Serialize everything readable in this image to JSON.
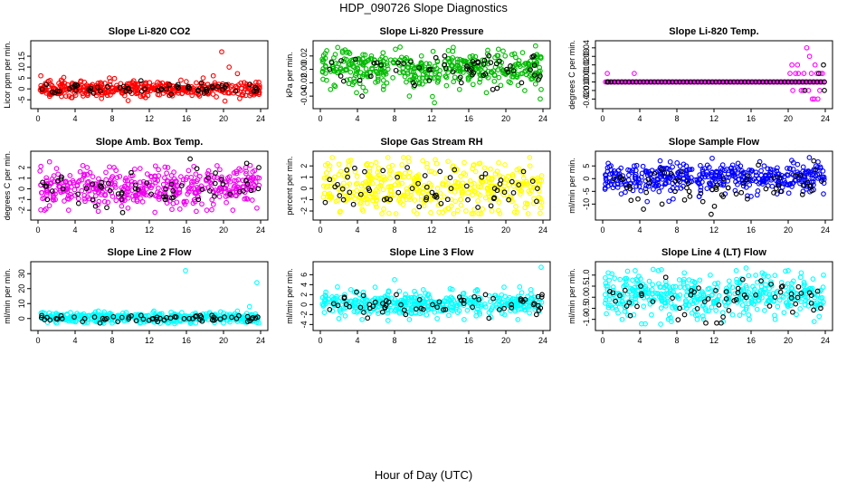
{
  "page": {
    "title": "HDP_090726  Slope Diagnostics",
    "xlabel": "Hour of Day (UTC)"
  },
  "chart_data": [
    {
      "type": "scatter",
      "title": "Slope Li-820 CO2",
      "ylabel": "Licor ppm per min.",
      "xlim": [
        0,
        24
      ],
      "ylim": [
        -7,
        20
      ],
      "xticks": [
        0,
        4,
        8,
        12,
        16,
        20,
        24
      ],
      "yticks": [
        -5,
        0,
        5,
        10,
        15
      ],
      "color": "#ff0000",
      "series": [
        {
          "name": "all",
          "center": 0,
          "spread": 1.6,
          "x": [
            0.3,
            1.2,
            2.5,
            3.6,
            5.0,
            6.3,
            7.7,
            9.1,
            10.4,
            11.6,
            12.9,
            14.2,
            15.4,
            16.6,
            17.8,
            18.9,
            19.8,
            20.6,
            21.5,
            22.4,
            23.5
          ],
          "y": [
            6,
            -2,
            4,
            -4,
            3,
            -3,
            5,
            -2,
            2,
            -4,
            3,
            -3,
            4,
            -3,
            5,
            6,
            17,
            10,
            7,
            -3,
            3
          ]
        },
        {
          "name": "outliers",
          "color": "#000000",
          "center": 0,
          "spread": 1.2,
          "x": [
            0.9,
            2.1,
            3.4,
            4.1,
            6.0,
            7.5,
            9.8,
            11.2,
            13.3,
            15.1,
            16.2,
            17.9,
            19.4,
            21.3,
            22.8,
            23.6
          ],
          "y": [
            2,
            -1,
            0,
            2,
            -2,
            1,
            0,
            -1,
            0,
            2,
            1,
            -2,
            1,
            -1,
            2,
            0
          ]
        }
      ]
    },
    {
      "type": "scatter",
      "title": "Slope Li-820 Pressure",
      "ylabel": "kPa per min.",
      "xlim": [
        0,
        24
      ],
      "ylim": [
        -0.052,
        0.036
      ],
      "xticks": [
        0,
        4,
        8,
        12,
        16,
        20,
        24
      ],
      "yticks": [
        -0.04,
        -0.02,
        0.0,
        0.02
      ],
      "ytick_labels": [
        "-0.04",
        "-0.02",
        "0.00",
        "0.02"
      ],
      "color": "#00bb00",
      "series": [
        {
          "name": "all",
          "center": 0.002,
          "spread": 0.013,
          "x": [
            1.1,
            2.4,
            3.9,
            5.5,
            6.8,
            8.1,
            9.6,
            10.9,
            12.3,
            13.8,
            15.0,
            16.4,
            17.9,
            19.2,
            20.5,
            21.8,
            23.2,
            23.8
          ],
          "y": [
            -0.03,
            0.025,
            -0.035,
            0.02,
            -0.03,
            0.03,
            -0.04,
            0.02,
            -0.05,
            0.028,
            -0.03,
            0.02,
            -0.035,
            0.03,
            -0.02,
            0.025,
            0.035,
            -0.03
          ]
        },
        {
          "name": "outliers",
          "color": "#000000",
          "center": 0.0,
          "spread": 0.012,
          "x": [
            1.0,
            2.2,
            3.8,
            4.5,
            6.1,
            8.4,
            10.0,
            11.9,
            13.4,
            15.2,
            17.0,
            18.6,
            20.1,
            21.7,
            23.0,
            23.7
          ],
          "y": [
            0.0,
            -0.01,
            0.015,
            -0.04,
            0.01,
            0.01,
            -0.02,
            0.0,
            0.02,
            -0.02,
            0.01,
            -0.03,
            0.0,
            -0.02,
            0.02,
            -0.01
          ]
        }
      ]
    },
    {
      "type": "scatter",
      "title": "Slope Li-820 Temp.",
      "ylabel": "degrees C per min.",
      "xlim": [
        0,
        24
      ],
      "ylim": [
        -0.026,
        0.043
      ],
      "xticks": [
        0,
        4,
        8,
        12,
        16,
        20,
        24
      ],
      "yticks": [
        -0.02,
        -0.01,
        0.0,
        0.01,
        0.02,
        0.03,
        0.04
      ],
      "ytick_labels": [
        "-0.02",
        "-0.01",
        "0.00",
        "0.01",
        "0.02",
        "0.03",
        "0.04"
      ],
      "color": "#ff00ff",
      "series": [
        {
          "name": "baseline",
          "center": 0.0,
          "spread": 0.0,
          "x": [],
          "y": []
        },
        {
          "name": "all",
          "center": 0.0,
          "spread": 0.0,
          "x": [
            0.5,
            3.4,
            20.2,
            20.5,
            20.8,
            21.1,
            21.4,
            21.7,
            22.0,
            22.2,
            22.5,
            22.8,
            23.1,
            23.4,
            23.7,
            20.4,
            21.0,
            21.6,
            22.3,
            22.9,
            23.5,
            22.6,
            23.2
          ],
          "y": [
            0.01,
            0.01,
            0.01,
            -0.01,
            0.01,
            0.01,
            -0.01,
            0.01,
            0.04,
            -0.01,
            0.01,
            -0.02,
            0.01,
            -0.01,
            0.01,
            0.02,
            0.02,
            -0.01,
            0.03,
            0.02,
            0.01,
            -0.02,
            -0.02
          ]
        },
        {
          "name": "outliers",
          "color": "#000000",
          "center": 0.0,
          "spread": 0.0,
          "x": [
            0.6,
            21.8,
            23.3,
            23.8,
            23.9
          ],
          "y": [
            0.0,
            -0.01,
            0.01,
            0.02,
            -0.01
          ]
        }
      ]
    },
    {
      "type": "scatter",
      "title": "Slope Amb. Box Temp.",
      "ylabel": "degrees C per min.",
      "xlim": [
        0,
        24
      ],
      "ylim": [
        -2.5,
        3.1
      ],
      "xticks": [
        0,
        4,
        8,
        12,
        16,
        20,
        24
      ],
      "yticks": [
        -2,
        -1,
        0,
        1,
        2
      ],
      "color": "#ee00ee",
      "series": [
        {
          "name": "all",
          "center": 0.2,
          "spread": 0.9,
          "x": [
            0.7,
            2.0,
            3.3,
            5.3,
            6.5,
            8.2,
            9.7,
            11.0,
            12.6,
            14.0,
            15.3,
            16.8,
            18.2,
            19.6,
            21.0,
            22.4,
            23.6
          ],
          "y": [
            -2,
            1.9,
            -2,
            2,
            -2.1,
            2,
            -1.8,
            1.9,
            -2.2,
            2,
            -1.9,
            2.1,
            -2,
            1.8,
            -2,
            2,
            -1.8
          ]
        },
        {
          "name": "outliers",
          "color": "#000000",
          "center": 0.0,
          "spread": 0.8,
          "x": [
            1.0,
            2.7,
            4.3,
            5.9,
            7.6,
            9.0,
            10.5,
            12.2,
            13.7,
            15.5,
            16.4,
            17.3,
            19.1,
            20.7,
            22.5,
            23.8
          ],
          "y": [
            -1,
            0,
            -0.5,
            -1,
            0.5,
            -1,
            0,
            -0.5,
            -1,
            0.3,
            2.8,
            -1,
            0.5,
            -0.5,
            2.4,
            2
          ]
        }
      ]
    },
    {
      "type": "scatter",
      "title": "Slope Gas Stream RH",
      "ylabel": "percent per min.",
      "xlim": [
        0,
        24
      ],
      "ylim": [
        -2.4,
        2.9
      ],
      "xticks": [
        0,
        4,
        8,
        12,
        16,
        20,
        24
      ],
      "yticks": [
        -2,
        -1,
        0,
        1,
        2
      ],
      "color": "#ffff00",
      "series": [
        {
          "name": "all",
          "center": 0.1,
          "spread": 1.05,
          "x": [
            0.8,
            2.1,
            3.3,
            4.6,
            6.0,
            7.4,
            8.8,
            10.1,
            11.5,
            12.8,
            14.3,
            15.7,
            17.1,
            18.5,
            19.9,
            21.2,
            22.6,
            23.7
          ],
          "y": [
            2.2,
            -2.1,
            2.5,
            -2,
            2.3,
            -2.2,
            2.1,
            -2,
            2.2,
            -2.1,
            2,
            -2,
            2.2,
            -2,
            2.1,
            -2.1,
            2,
            -2.2
          ]
        },
        {
          "name": "outliers",
          "color": "#000000",
          "center": 0.0,
          "spread": 0.9,
          "x": [
            1.0,
            2.5,
            3.7,
            5.2,
            6.9,
            8.3,
            9.9,
            11.4,
            12.9,
            14.1,
            15.9,
            17.4,
            18.8,
            20.3,
            21.9,
            23.4
          ],
          "y": [
            0.8,
            -1,
            1.8,
            0,
            -1,
            1,
            0,
            -1,
            1.5,
            0,
            -1,
            1,
            0,
            -1,
            1.5,
            0
          ]
        }
      ]
    },
    {
      "type": "scatter",
      "title": "Slope Sample Flow",
      "ylabel": "ml/min per min.",
      "xlim": [
        0,
        24
      ],
      "ylim": [
        -14.5,
        9
      ],
      "xticks": [
        0,
        4,
        8,
        12,
        16,
        20,
        24
      ],
      "yticks": [
        -10,
        -5,
        0,
        5
      ],
      "color": "#0000ff",
      "series": [
        {
          "name": "all",
          "center": 0.5,
          "spread": 2.6,
          "x": [
            0.6,
            2.0,
            3.4,
            4.8,
            6.2,
            7.6,
            9.0,
            10.4,
            11.8,
            13.2,
            14.6,
            16.0,
            17.4,
            18.8,
            20.2,
            21.6,
            23.0,
            23.8
          ],
          "y": [
            6,
            -6,
            5,
            -9,
            7,
            -8,
            5,
            -7,
            8,
            -6,
            6,
            -7,
            5,
            -6,
            4,
            -5,
            5,
            -6
          ]
        },
        {
          "name": "outliers",
          "color": "#000000",
          "center": -2.0,
          "spread": 4.0,
          "x": [
            1.2,
            2.9,
            3.8,
            4.4,
            5.6,
            6.4,
            7.8,
            9.4,
            10.8,
            11.7,
            13.0,
            14.4,
            15.6,
            17.6,
            19.2,
            20.8,
            22.4,
            23.6
          ],
          "y": [
            0,
            -3,
            -8,
            -12,
            2,
            -10,
            -5,
            -7,
            -9,
            -14,
            0,
            -6,
            -8,
            -4,
            -5,
            1,
            -3,
            -1
          ]
        }
      ]
    },
    {
      "type": "scatter",
      "title": "Slope Line 2 Flow",
      "ylabel": "ml/min per min.",
      "xlim": [
        0,
        24
      ],
      "ylim": [
        -5,
        35
      ],
      "xticks": [
        0,
        4,
        8,
        12,
        16,
        20,
        24
      ],
      "yticks": [
        0,
        10,
        20,
        30
      ],
      "color": "#00ffff",
      "series": [
        {
          "name": "all",
          "center": 0.5,
          "spread": 1.6,
          "x": [
            0.5,
            2.0,
            3.5,
            5.0,
            6.5,
            8.0,
            9.5,
            11.0,
            12.5,
            14.0,
            15.5,
            15.9,
            17.0,
            18.5,
            20.0,
            21.5,
            22.8,
            23.6,
            23.8
          ],
          "y": [
            4,
            -3,
            4,
            -3,
            5,
            -3,
            4,
            -3,
            5,
            -3,
            4,
            32,
            -3,
            4,
            -3,
            5,
            8,
            24,
            -3
          ]
        },
        {
          "name": "outliers",
          "color": "#000000",
          "center": 0.0,
          "spread": 1.2,
          "x": [
            0.4,
            1.3,
            2.6,
            3.9,
            4.8,
            6.1,
            7.4,
            8.6,
            9.8,
            11.1,
            12.4,
            13.6,
            14.9,
            16.3,
            17.5,
            18.8,
            20.1,
            21.4,
            22.6,
            23.7
          ],
          "y": [
            2,
            -1,
            0,
            1,
            -2,
            1,
            0,
            -2,
            1,
            2,
            0,
            -1,
            1,
            0,
            2,
            -1,
            1,
            0,
            -2,
            1
          ]
        }
      ]
    },
    {
      "type": "scatter",
      "title": "Slope Line 3 Flow",
      "ylabel": "ml/min per min.",
      "xlim": [
        0,
        24
      ],
      "ylim": [
        -4.3,
        7.7
      ],
      "xticks": [
        0,
        4,
        8,
        12,
        16,
        20,
        24
      ],
      "yticks": [
        -4,
        -2,
        0,
        2,
        4,
        6
      ],
      "color": "#00ffff",
      "series": [
        {
          "name": "all",
          "center": 0.2,
          "spread": 1.1,
          "x": [
            0.6,
            2.0,
            3.3,
            4.5,
            5.9,
            7.3,
            8.0,
            9.6,
            11.1,
            12.6,
            14.0,
            15.5,
            16.9,
            18.4,
            19.8,
            21.3,
            22.7,
            23.8
          ],
          "y": [
            2.5,
            -2.8,
            3,
            -3,
            3.5,
            -3.2,
            5,
            -3,
            3,
            -2.8,
            3.2,
            -3,
            3,
            -2.5,
            3.5,
            -3,
            3,
            7.5
          ]
        },
        {
          "name": "outliers",
          "color": "#000000",
          "center": 0.0,
          "spread": 1.0,
          "x": [
            1.0,
            2.6,
            3.9,
            5.3,
            6.7,
            8.2,
            9.2,
            10.7,
            12.1,
            13.5,
            15.0,
            16.4,
            17.8,
            19.3,
            20.6,
            22.1,
            23.3,
            23.9
          ],
          "y": [
            -1,
            1.5,
            2.5,
            0,
            -1.5,
            2,
            -2,
            1,
            0,
            -1,
            1.5,
            -0.5,
            2,
            -1,
            0,
            1,
            -2,
            2
          ]
        }
      ]
    },
    {
      "type": "scatter",
      "title": "Slope Line 4 (LT) Flow",
      "ylabel": "ml/min per min.",
      "xlim": [
        0,
        24
      ],
      "ylim": [
        -1.3,
        1.4
      ],
      "xticks": [
        0,
        4,
        8,
        12,
        16,
        20,
        24
      ],
      "yticks": [
        -1.0,
        -0.5,
        0.0,
        0.5,
        1.0
      ],
      "ytick_labels": [
        "-1.0",
        "-0.5",
        "0.0",
        "0.5",
        "1.0"
      ],
      "color": "#00ffff",
      "series": [
        {
          "name": "all",
          "center": 0.1,
          "spread": 0.45,
          "x": [
            0.6,
            2.1,
            3.5,
            4.6,
            6.0,
            7.4,
            8.8,
            10.2,
            11.6,
            13.0,
            14.4,
            15.8,
            17.2,
            18.6,
            20.0,
            21.4,
            22.8,
            23.8
          ],
          "y": [
            1.1,
            -1.0,
            1.2,
            -1.2,
            1.2,
            -1.1,
            1.1,
            -1.0,
            1.0,
            -1.1,
            1.2,
            -1.0,
            1.1,
            -1.0,
            1.2,
            1.1,
            -1.1,
            1.0
          ]
        },
        {
          "name": "outliers",
          "color": "#000000",
          "center": -0.1,
          "spread": 0.5,
          "x": [
            1.1,
            2.6,
            4.1,
            5.4,
            6.8,
            8.3,
            9.5,
            11.0,
            12.2,
            13.6,
            15.1,
            16.5,
            18.0,
            19.4,
            20.8,
            22.3,
            23.5
          ],
          "y": [
            0.2,
            -0.4,
            0.5,
            -0.2,
            0.9,
            -0.5,
            0.1,
            -0.2,
            0.3,
            -0.6,
            0.8,
            0.1,
            -0.4,
            0.5,
            -0.3,
            0.2,
            -0.5
          ]
        }
      ]
    }
  ]
}
